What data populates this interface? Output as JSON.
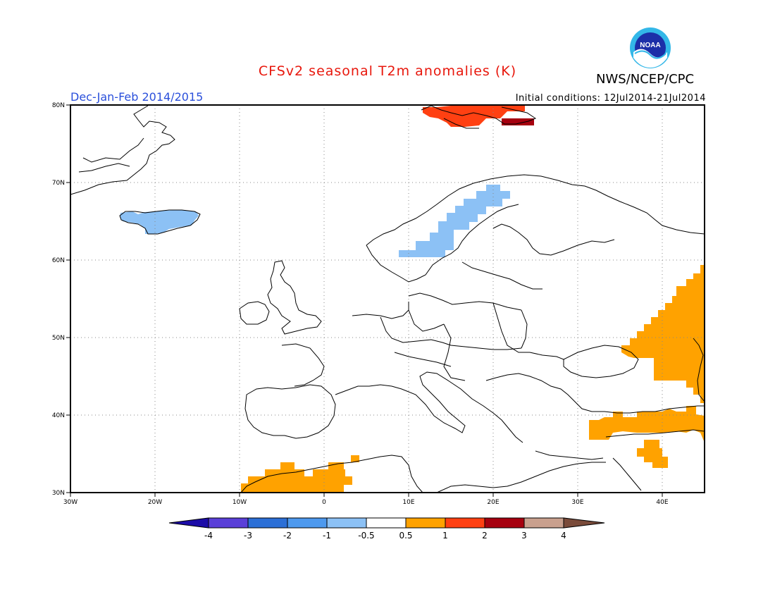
{
  "title": "CFSv2 seasonal T2m anomalies (K)",
  "title_color": "#e8170c",
  "organization": "NWS/NCEP/CPC",
  "logo_text": "NOAA",
  "season_label": "Dec-Jan-Feb 2014/2015",
  "season_color": "#2a4fdb",
  "initial_conditions": "Initial conditions: 12Jul2014-21Jul2014",
  "map": {
    "lat_range": [
      30,
      80
    ],
    "lon_range": [
      -30,
      45
    ],
    "lat_ticks": [
      "30N",
      "40N",
      "50N",
      "60N",
      "70N",
      "80N"
    ],
    "lon_ticks": [
      "30W",
      "20W",
      "10W",
      "0",
      "10E",
      "20E",
      "30E",
      "40E"
    ],
    "gridlines": "dotted"
  },
  "colorbar": {
    "ticks": [
      "-4",
      "-3",
      "-2",
      "-1",
      "-0.5",
      "0.5",
      "1",
      "2",
      "3",
      "4"
    ],
    "colors": [
      "#1c0ca8",
      "#5a3fd8",
      "#2b6fd6",
      "#4d99ee",
      "#8cc1f5",
      "#ffffff",
      "#ffa200",
      "#ff4012",
      "#a6000f",
      "#c9a08e",
      "#7a4b3a"
    ]
  },
  "anomaly_regions": [
    {
      "name": "Iceland",
      "category": "-1 to -0.5",
      "color": "#8cc1f5"
    },
    {
      "name": "Scandinavia",
      "category": "-1 to -0.5",
      "color": "#8cc1f5"
    },
    {
      "name": "Svalbard",
      "category": "1 to 2",
      "color": "#ff4012"
    },
    {
      "name": "Svalbard east",
      "category": "2 to 3",
      "color": "#a6000f"
    },
    {
      "name": "Eastern Europe / Russia",
      "category": "0.5 to 1",
      "color": "#ffa200"
    },
    {
      "name": "Turkey",
      "category": "0.5 to 1",
      "color": "#ffa200"
    },
    {
      "name": "Middle East",
      "category": "0.5 to 1",
      "color": "#ffa200"
    },
    {
      "name": "North Africa",
      "category": "0.5 to 1",
      "color": "#ffa200"
    }
  ]
}
